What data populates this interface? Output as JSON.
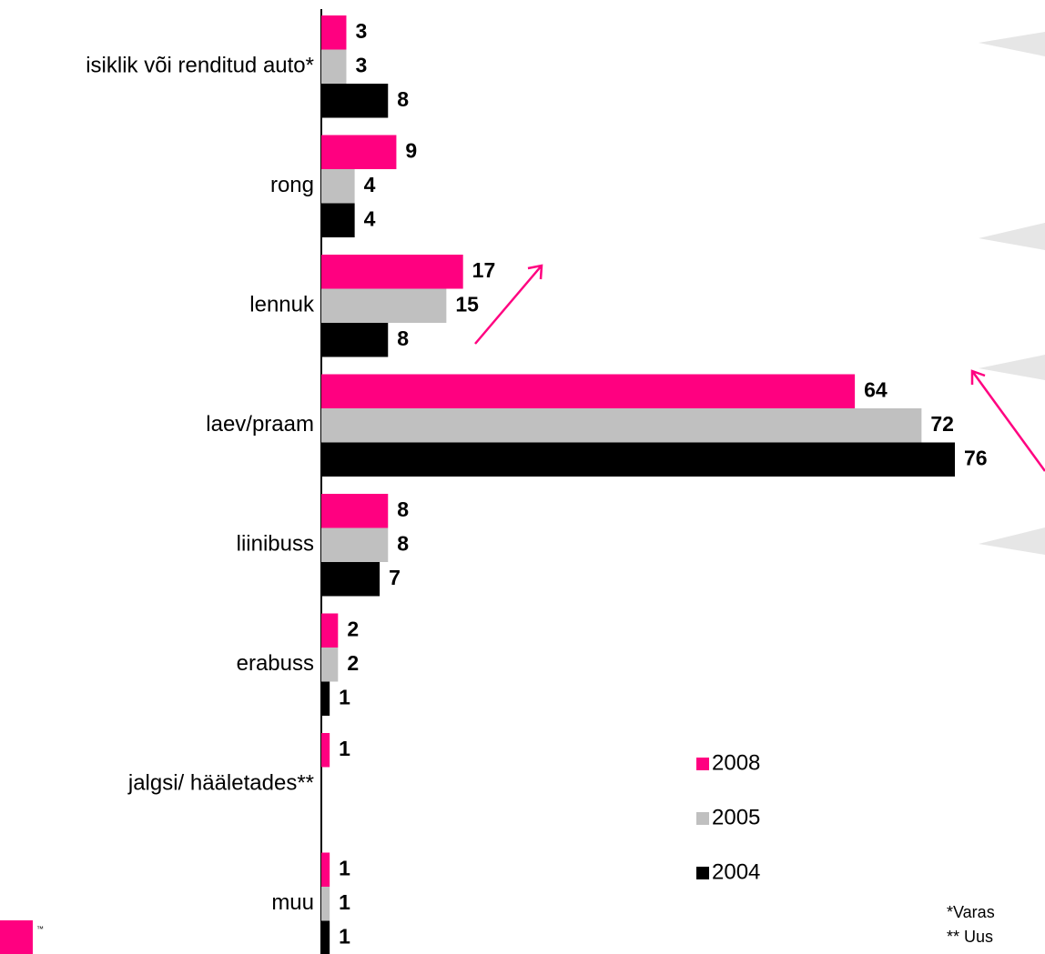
{
  "chart_data": {
    "type": "barh",
    "categories": [
      "isiklik või renditud auto*",
      "rong",
      "lennuk",
      "laev/praam",
      "liinibuss",
      "erabuss",
      "jalgsi/ hääletades**",
      "muu"
    ],
    "series": [
      {
        "name": "2008",
        "color": "#ff0080",
        "values": [
          3,
          9,
          17,
          64,
          8,
          2,
          1,
          1
        ]
      },
      {
        "name": "2005",
        "color": "#c0c0c0",
        "values": [
          3,
          4,
          15,
          72,
          8,
          2,
          null,
          1
        ]
      },
      {
        "name": "2004",
        "color": "#000000",
        "values": [
          8,
          4,
          8,
          76,
          7,
          1,
          null,
          1
        ]
      }
    ],
    "xlim": [
      0,
      76
    ],
    "footnotes": [
      "*Varas",
      "** Uus"
    ],
    "logo": "™"
  }
}
